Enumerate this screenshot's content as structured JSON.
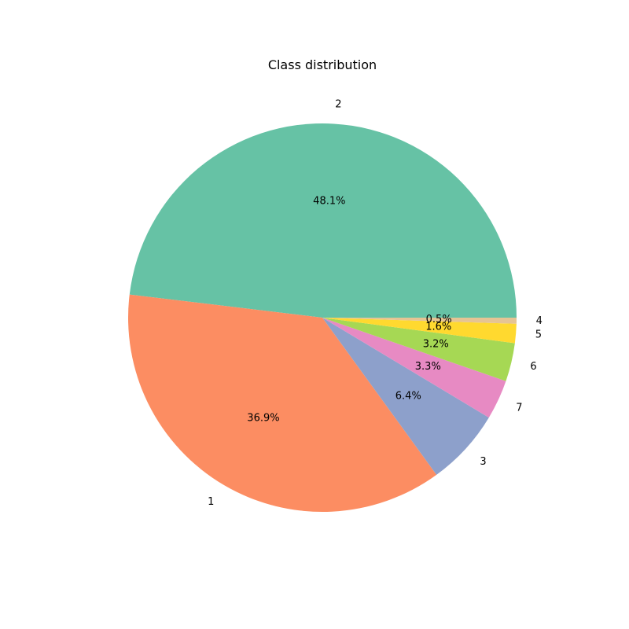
{
  "chart_data": {
    "type": "pie",
    "title": "Class distribution",
    "start_angle_deg": 0,
    "direction": "counterclockwise",
    "slices": [
      {
        "label": "2",
        "pct_text": "48.1%",
        "value": 48.1,
        "color": "#66c2a5"
      },
      {
        "label": "1",
        "pct_text": "36.9%",
        "value": 36.9,
        "color": "#fc8d62"
      },
      {
        "label": "3",
        "pct_text": "6.4%",
        "value": 6.4,
        "color": "#8da0cb"
      },
      {
        "label": "7",
        "pct_text": "3.3%",
        "value": 3.3,
        "color": "#e78ac3"
      },
      {
        "label": "6",
        "pct_text": "3.2%",
        "value": 3.2,
        "color": "#a6d854"
      },
      {
        "label": "5",
        "pct_text": "1.6%",
        "value": 1.6,
        "color": "#ffd92f"
      },
      {
        "label": "4",
        "pct_text": "0.5%",
        "value": 0.5,
        "color": "#e5c494"
      }
    ]
  }
}
